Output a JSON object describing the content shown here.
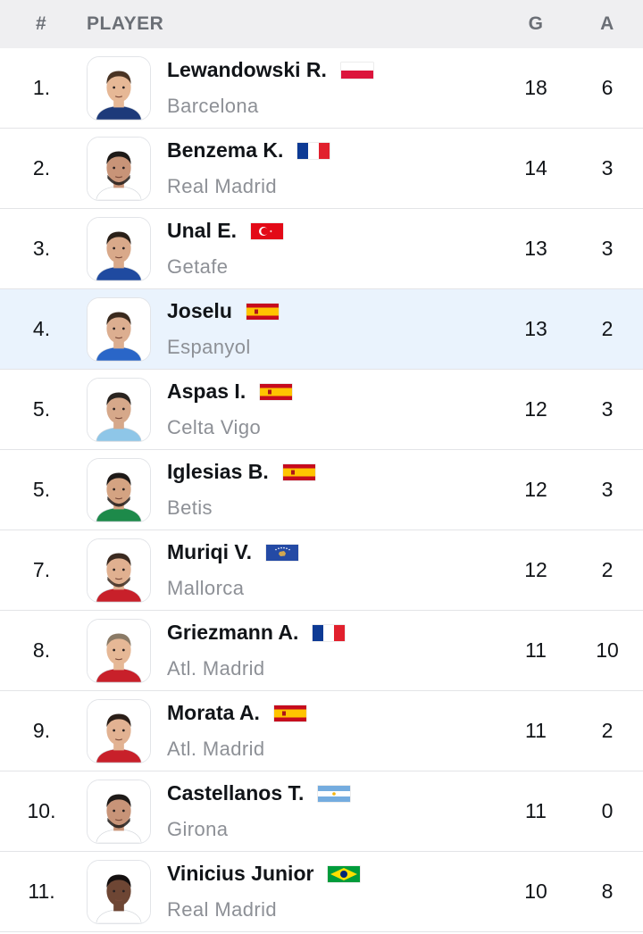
{
  "header": {
    "rank": "#",
    "player": "PLAYER",
    "goals": "G",
    "assists": "A"
  },
  "colors": {
    "header_bg": "#efeff1",
    "highlight_row_bg": "#eaf3fd",
    "team_text": "#8d9096"
  },
  "rows": [
    {
      "rank": "1.",
      "name": "Lewandowski R.",
      "team": "Barcelona",
      "flag": "poland",
      "goals": "18",
      "assists": "6",
      "highlight": false,
      "kit": "#1d3a7a",
      "skin": "#e6b896",
      "hair": "#4a3424",
      "beard": false
    },
    {
      "rank": "2.",
      "name": "Benzema K.",
      "team": "Real Madrid",
      "flag": "france",
      "goals": "14",
      "assists": "3",
      "highlight": false,
      "kit": "#ffffff",
      "skin": "#c89478",
      "hair": "#1e1a18",
      "beard": true
    },
    {
      "rank": "3.",
      "name": "Unal E.",
      "team": "Getafe",
      "flag": "turkey",
      "goals": "13",
      "assists": "3",
      "highlight": false,
      "kit": "#1f4aa0",
      "skin": "#d9a98a",
      "hair": "#2a2018",
      "beard": false
    },
    {
      "rank": "4.",
      "name": "Joselu",
      "team": "Espanyol",
      "flag": "spain",
      "goals": "13",
      "assists": "2",
      "highlight": true,
      "kit": "#2a66c8",
      "skin": "#dcae90",
      "hair": "#3a2a1e",
      "beard": false
    },
    {
      "rank": "5.",
      "name": "Aspas I.",
      "team": "Celta Vigo",
      "flag": "spain",
      "goals": "12",
      "assists": "3",
      "highlight": false,
      "kit": "#8ec6e8",
      "skin": "#d6a88a",
      "hair": "#2a2420",
      "beard": false
    },
    {
      "rank": "5.",
      "name": "Iglesias B.",
      "team": "Betis",
      "flag": "spain",
      "goals": "12",
      "assists": "3",
      "highlight": false,
      "kit": "#1d8a4a",
      "skin": "#d4a382",
      "hair": "#1e1a18",
      "beard": true
    },
    {
      "rank": "7.",
      "name": "Muriqi V.",
      "team": "Mallorca",
      "flag": "kosovo",
      "goals": "12",
      "assists": "2",
      "highlight": false,
      "kit": "#c8202a",
      "skin": "#e0b090",
      "hair": "#3a2a20",
      "beard": true
    },
    {
      "rank": "8.",
      "name": "Griezmann A.",
      "team": "Atl. Madrid",
      "flag": "france",
      "goals": "11",
      "assists": "10",
      "highlight": false,
      "kit": "#c8202a",
      "skin": "#e6b896",
      "hair": "#8a7a66",
      "beard": false
    },
    {
      "rank": "9.",
      "name": "Morata A.",
      "team": "Atl. Madrid",
      "flag": "spain",
      "goals": "11",
      "assists": "2",
      "highlight": false,
      "kit": "#c8202a",
      "skin": "#e2b292",
      "hair": "#2a1e18",
      "beard": false
    },
    {
      "rank": "10.",
      "name": "Castellanos T.",
      "team": "Girona",
      "flag": "argentina",
      "goals": "11",
      "assists": "0",
      "highlight": false,
      "kit": "#ffffff",
      "skin": "#c89478",
      "hair": "#1e1a18",
      "beard": true
    },
    {
      "rank": "11.",
      "name": "Vinicius Junior",
      "team": "Real Madrid",
      "flag": "brazil",
      "goals": "10",
      "assists": "8",
      "highlight": false,
      "kit": "#ffffff",
      "skin": "#6e4634",
      "hair": "#141010",
      "beard": false
    }
  ]
}
